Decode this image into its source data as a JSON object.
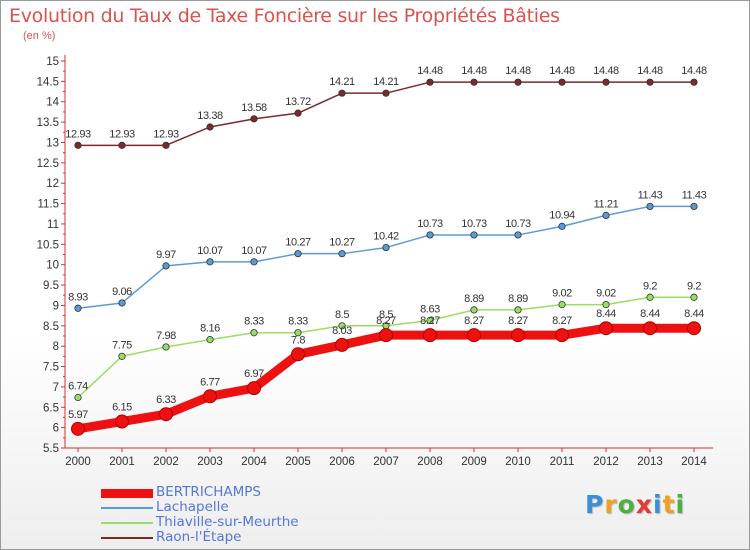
{
  "header": {
    "title": "Evolution du Taux de Taxe Foncière sur les Propriétés Bâties",
    "unit_note": "(en %)"
  },
  "chart_data": {
    "type": "line",
    "title": "Evolution du Taux de Taxe Foncière sur les Propriétés Bâties",
    "ylabel": "(en %)",
    "xlabel": "",
    "x": [
      2000,
      2001,
      2002,
      2003,
      2004,
      2005,
      2006,
      2007,
      2008,
      2009,
      2010,
      2011,
      2012,
      2013,
      2014
    ],
    "ylim": [
      5.5,
      15
    ],
    "ytick_step": 0.5,
    "yticks": [
      "5.5",
      "6",
      "6.5",
      "7",
      "7.5",
      "8",
      "8.5",
      "9",
      "9.5",
      "10",
      "10.5",
      "11",
      "11.5",
      "12",
      "12.5",
      "13",
      "13.5",
      "14",
      "14.5",
      "15"
    ],
    "grid": false,
    "legend_position": "bottom-left",
    "series": [
      {
        "name": "Raon-l'Étape",
        "color": "#7a2a2a",
        "values": [
          12.93,
          12.93,
          12.93,
          13.38,
          13.58,
          13.72,
          14.21,
          14.21,
          14.48,
          14.48,
          14.48,
          14.48,
          14.48,
          14.48,
          14.48
        ],
        "labels": [
          "12.93",
          "12.93",
          "12.93",
          "13.38",
          "13.58",
          "13.72",
          "14.21",
          "14.21",
          "14.48",
          "14.48",
          "14.48",
          "14.48",
          "14.48",
          "14.48",
          "14.48"
        ]
      },
      {
        "name": "Lachapelle",
        "color": "#5b9bd5",
        "values": [
          8.93,
          9.06,
          9.97,
          10.07,
          10.07,
          10.27,
          10.27,
          10.42,
          10.73,
          10.73,
          10.73,
          10.94,
          11.21,
          11.43,
          11.43
        ],
        "labels": [
          "8.93",
          "9.06",
          "9.97",
          "10.07",
          "10.07",
          "10.27",
          "10.27",
          "10.42",
          "10.73",
          "10.73",
          "10.73",
          "10.94",
          "11.21",
          "11.43",
          "11.43"
        ]
      },
      {
        "name": "Thiaville-sur-Meurthe",
        "color": "#99dd66",
        "values": [
          6.74,
          7.75,
          7.98,
          8.16,
          8.33,
          8.33,
          8.5,
          8.5,
          8.63,
          8.89,
          8.89,
          9.02,
          9.02,
          9.2,
          9.2
        ],
        "labels": [
          "6.74",
          "7.75",
          "7.98",
          "8.16",
          "8.33",
          "8.33",
          "8.5",
          "8.5",
          "8.63",
          "8.89",
          "8.89",
          "9.02",
          "9.02",
          "9.2",
          "9.2"
        ]
      },
      {
        "name": "BERTRICHAMPS",
        "color": "#ee1111",
        "values": [
          5.97,
          6.15,
          6.33,
          6.77,
          6.97,
          7.8,
          8.03,
          8.27,
          8.27,
          8.27,
          8.27,
          8.27,
          8.44,
          8.44,
          8.44
        ],
        "labels": [
          "5.97",
          "6.15",
          "6.33",
          "6.77",
          "6.97",
          "7.8",
          "8.03",
          "8.27",
          "8.27",
          "8.27",
          "8.27",
          "8.27",
          "8.44",
          "8.44",
          "8.44"
        ]
      }
    ],
    "legend_order": [
      "BERTRICHAMPS",
      "Lachapelle",
      "Thiaville-sur-Meurthe",
      "Raon-l'Étape"
    ]
  },
  "legend": {
    "items": [
      {
        "label": "BERTRICHAMPS",
        "color": "#ee1111"
      },
      {
        "label": "Lachapelle",
        "color": "#5b9bd5"
      },
      {
        "label": "Thiaville-sur-Meurthe",
        "color": "#99dd66"
      },
      {
        "label": "Raon-l'Étape",
        "color": "#7a2a2a"
      }
    ]
  },
  "logo": {
    "letters": [
      "P",
      "r",
      "o",
      "x",
      "i",
      "t",
      "i"
    ],
    "colors": [
      "#3b8fd9",
      "#f0a020",
      "#4caf3f",
      "#e53935",
      "#3b8fd9",
      "#f0a020",
      "#4caf3f"
    ]
  }
}
